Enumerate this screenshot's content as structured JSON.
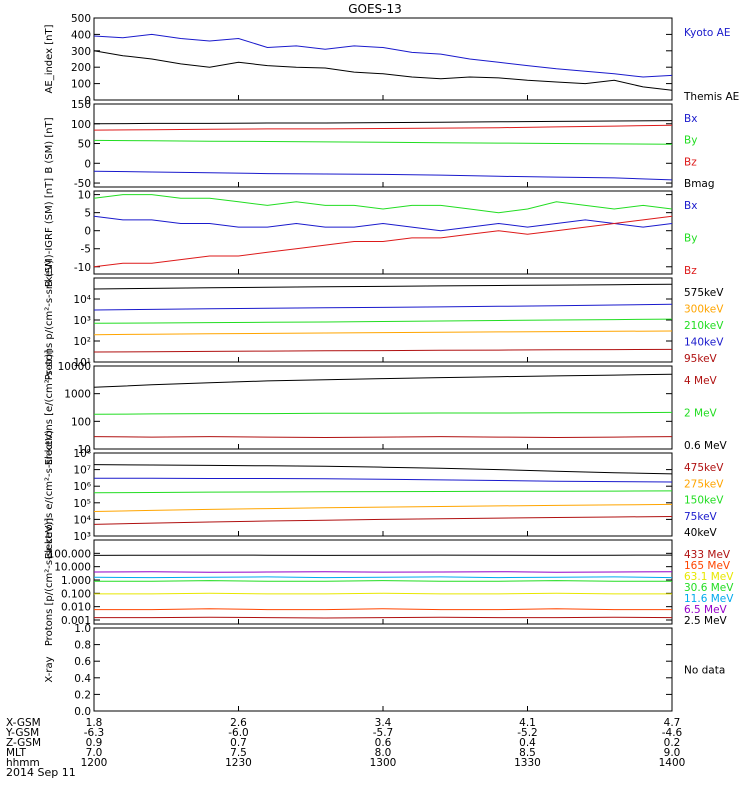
{
  "title": "GOES-13",
  "colors": {
    "black": "#000000",
    "blue": "#1a1acc",
    "red": "#dd1a1a",
    "green": "#22dd22",
    "orange": "#ffa500",
    "darkred": "#b01010",
    "orangered": "#ff4500",
    "yellow": "#e8e800",
    "cyan": "#00aaee",
    "purple": "#9400c8"
  },
  "chart_data": [
    {
      "type": "line",
      "ylabel": "AE_index [nT]",
      "yaxis": "linear",
      "ylim": [
        0,
        500
      ],
      "yticks": [
        "0",
        "100",
        "200",
        "300",
        "400",
        "500"
      ],
      "x": [
        0,
        5,
        10,
        15,
        20,
        25,
        30,
        35,
        40,
        45,
        50,
        55,
        60,
        65,
        70,
        75,
        80,
        85,
        90,
        95,
        100
      ],
      "series": [
        {
          "name": "Kyoto AE",
          "color": "blue",
          "values": [
            390,
            380,
            400,
            375,
            360,
            375,
            320,
            330,
            310,
            330,
            320,
            290,
            280,
            250,
            230,
            210,
            190,
            175,
            160,
            140,
            150
          ]
        },
        {
          "name": "Themis AE",
          "color": "black",
          "values": [
            300,
            270,
            250,
            220,
            200,
            230,
            210,
            200,
            195,
            170,
            160,
            140,
            130,
            140,
            135,
            120,
            110,
            100,
            120,
            80,
            60
          ]
        }
      ]
    },
    {
      "type": "line",
      "ylabel": "B (SM) [nT]",
      "yaxis": "linear",
      "ylim": [
        -60,
        150
      ],
      "yticks": [
        "-50",
        "0",
        "50",
        "100",
        "150"
      ],
      "series": [
        {
          "name": "Bx",
          "color": "blue",
          "values": [
            -20,
            -22,
            -24,
            -26,
            -27,
            -28,
            -30,
            -33,
            -35,
            -37,
            -42
          ]
        },
        {
          "name": "By",
          "color": "green",
          "values": [
            58,
            57,
            56,
            55,
            54,
            53,
            52,
            51,
            50,
            49,
            48
          ]
        },
        {
          "name": "Bz",
          "color": "red",
          "values": [
            84,
            85,
            86,
            87,
            87,
            88,
            89,
            90,
            92,
            94,
            96
          ]
        },
        {
          "name": "Bmag",
          "color": "black",
          "values": [
            100,
            101,
            101,
            102,
            102,
            103,
            104,
            105,
            106,
            107,
            108
          ]
        }
      ]
    },
    {
      "type": "line",
      "ylabel": "B (SM)-IGRF (SM) [nT]",
      "yaxis": "linear",
      "ylim": [
        -12,
        11
      ],
      "yticks": [
        "-10",
        "-5",
        "0",
        "5",
        "10"
      ],
      "series": [
        {
          "name": "Bx",
          "color": "blue",
          "values": [
            4,
            3,
            3,
            2,
            2,
            1,
            1,
            2,
            1,
            1,
            2,
            1,
            0,
            1,
            2,
            1,
            2,
            3,
            2,
            1,
            2
          ]
        },
        {
          "name": "By",
          "color": "green",
          "values": [
            9,
            10,
            10,
            9,
            9,
            8,
            7,
            8,
            7,
            7,
            6,
            7,
            7,
            6,
            5,
            6,
            8,
            7,
            6,
            7,
            6
          ]
        },
        {
          "name": "Bz",
          "color": "red",
          "values": [
            -10,
            -9,
            -9,
            -8,
            -7,
            -7,
            -6,
            -5,
            -4,
            -3,
            -3,
            -2,
            -2,
            -1,
            0,
            -1,
            0,
            1,
            2,
            3,
            4
          ]
        }
      ]
    },
    {
      "type": "line",
      "ylabel": "Protons p/(cm²-s-sr-keV)",
      "yaxis": "log",
      "ylim": [
        10,
        100000
      ],
      "yticks": [
        "10¹",
        "10²",
        "10³",
        "10⁴"
      ],
      "series": [
        {
          "name": "575keV",
          "color": "black",
          "values": [
            30000,
            32000,
            34000,
            36000,
            38000,
            40000,
            42000,
            44000,
            46000,
            48000,
            50000
          ]
        },
        {
          "name": "300keV",
          "color": "orange",
          "values": [
            200,
            210,
            220,
            230,
            240,
            250,
            260,
            270,
            280,
            290,
            300
          ]
        },
        {
          "name": "210keV",
          "color": "green",
          "values": [
            700,
            720,
            750,
            780,
            800,
            850,
            900,
            950,
            1000,
            1050,
            1100
          ]
        },
        {
          "name": "140keV",
          "color": "blue",
          "values": [
            3000,
            3200,
            3400,
            3600,
            3800,
            4000,
            4200,
            4500,
            4800,
            5200,
            5600
          ]
        },
        {
          "name": "95keV",
          "color": "darkred",
          "values": [
            30,
            31,
            32,
            33,
            34,
            35,
            36,
            37,
            38,
            39,
            40
          ]
        }
      ]
    },
    {
      "type": "line",
      "ylabel": "Electrons [e/(cm²-s-sr)]",
      "yaxis": "log",
      "ylim": [
        10,
        10000
      ],
      "yticks": [
        "10",
        "100",
        "1000",
        "10000"
      ],
      "series": [
        {
          "name": "4 MeV",
          "color": "darkred",
          "values": [
            28,
            27,
            28,
            27,
            26,
            27,
            28,
            27,
            26,
            27,
            28
          ]
        },
        {
          "name": "2 MeV",
          "color": "green",
          "values": [
            180,
            185,
            190,
            190,
            195,
            195,
            200,
            200,
            205,
            205,
            210
          ]
        },
        {
          "name": "0.6 MeV",
          "color": "black",
          "values": [
            1700,
            2100,
            2500,
            2900,
            3200,
            3500,
            3800,
            4100,
            4400,
            4700,
            5000
          ]
        }
      ]
    },
    {
      "type": "line",
      "ylabel": "Electrons e/(cm²-s-sr-keV)",
      "yaxis": "log",
      "ylim": [
        1000,
        100000000
      ],
      "yticks": [
        "10³",
        "10⁴",
        "10⁵",
        "10⁶",
        "10⁷",
        "10⁸"
      ],
      "series": [
        {
          "name": "475keV",
          "color": "darkred",
          "values": [
            5000,
            6000,
            7000,
            8000,
            9000,
            10000,
            11000,
            12000,
            13000,
            14000,
            15000
          ]
        },
        {
          "name": "275keV",
          "color": "orange",
          "values": [
            30000,
            35000,
            40000,
            45000,
            50000,
            55000,
            60000,
            65000,
            70000,
            75000,
            80000
          ]
        },
        {
          "name": "150keV",
          "color": "green",
          "values": [
            400000,
            420000,
            440000,
            450000,
            460000,
            470000,
            480000,
            490000,
            500000,
            510000,
            520000
          ]
        },
        {
          "name": "75keV",
          "color": "blue",
          "values": [
            3000000,
            3000000,
            2900000,
            2900000,
            2800000,
            2600000,
            2400000,
            2200000,
            2000000,
            1900000,
            1800000
          ]
        },
        {
          "name": "40keV",
          "color": "black",
          "values": [
            20000000,
            19000000,
            18000000,
            17000000,
            16000000,
            14000000,
            12000000,
            10000000,
            8000000,
            6500000,
            5500000
          ]
        }
      ]
    },
    {
      "type": "line",
      "ylabel": "Protons [p/(cm²-s-sr-keV)]",
      "yaxis": "log",
      "ylim": [
        0.0005,
        1000
      ],
      "yticks": [
        "0.001",
        "0.010",
        "0.100",
        "1.000",
        "10.000",
        "100.000"
      ],
      "series": [
        {
          "name": "433 MeV",
          "color": "darkred",
          "values": [
            0.0015,
            0.0015,
            0.0016,
            0.0015,
            0.0014,
            0.0015,
            0.0016,
            0.0015,
            0.0015,
            0.0016,
            0.0015
          ]
        },
        {
          "name": "165 MeV",
          "color": "orangered",
          "values": [
            0.006,
            0.006,
            0.007,
            0.006,
            0.006,
            0.007,
            0.006,
            0.006,
            0.007,
            0.006,
            0.006
          ]
        },
        {
          "name": "63.1 MeV",
          "color": "yellow",
          "values": [
            0.09,
            0.09,
            0.1,
            0.09,
            0.09,
            0.1,
            0.09,
            0.09,
            0.1,
            0.09,
            0.09
          ]
        },
        {
          "name": "30.6 MeV",
          "color": "green",
          "values": [
            0.8,
            0.8,
            0.9,
            0.8,
            0.8,
            0.9,
            0.8,
            0.8,
            0.9,
            0.8,
            0.8
          ]
        },
        {
          "name": "11.6 MeV",
          "color": "cyan",
          "values": [
            1.6,
            1.5,
            1.6,
            1.7,
            1.5,
            1.6,
            1.7,
            1.5,
            1.6,
            1.7,
            1.5
          ]
        },
        {
          "name": "6.5 MeV",
          "color": "purple",
          "values": [
            4,
            4.2,
            3.8,
            4,
            4.1,
            3.9,
            4,
            4.2,
            3.8,
            4,
            4.1
          ]
        },
        {
          "name": "2.5 MeV",
          "color": "black",
          "values": [
            70,
            72,
            74,
            72,
            70,
            72,
            74,
            72,
            70,
            72,
            74
          ]
        }
      ]
    },
    {
      "type": "line",
      "ylabel": "X-ray",
      "yaxis": "linear",
      "ylim": [
        0,
        1
      ],
      "yticks": [
        "0.0",
        "0.2",
        "0.4",
        "0.6",
        "0.8",
        "1.0"
      ],
      "series": [],
      "note": "No data"
    }
  ],
  "xaxis": {
    "rows": [
      {
        "label": "X-GSM",
        "values": [
          "1.8",
          "2.6",
          "3.4",
          "4.1",
          "4.7"
        ]
      },
      {
        "label": "Y-GSM",
        "values": [
          "-6.3",
          "-6.0",
          "-5.7",
          "-5.2",
          "-4.6"
        ]
      },
      {
        "label": "Z-GSM",
        "values": [
          "0.9",
          "0.7",
          "0.6",
          "0.4",
          "0.2"
        ]
      },
      {
        "label": "MLT",
        "values": [
          "7.0",
          "7.5",
          "8.0",
          "8.5",
          "9.0"
        ]
      },
      {
        "label": "hhmm",
        "values": [
          "1200",
          "1230",
          "1300",
          "1330",
          "1400"
        ]
      }
    ],
    "date": "2014 Sep 11"
  }
}
